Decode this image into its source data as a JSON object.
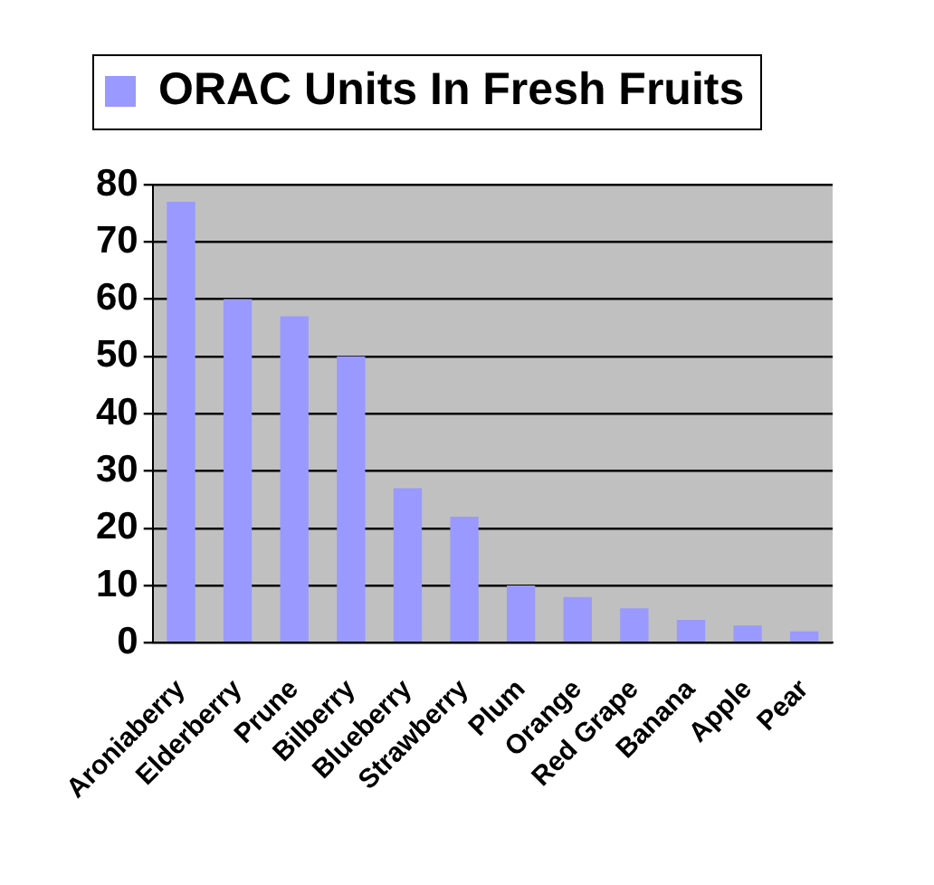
{
  "chart_data": {
    "type": "bar",
    "categories": [
      "Aroniaberry",
      "Elderberry",
      "Prune",
      "Bilberry",
      "Blueberry",
      "Strawberry",
      "Plum",
      "Orange",
      "Red Grape",
      "Banana",
      "Apple",
      "Pear"
    ],
    "series": [
      {
        "name": "ORAC Units In Fresh Fruits",
        "color": "#9999ff",
        "values": [
          77,
          60,
          57,
          50,
          27,
          22,
          10,
          8,
          6,
          4,
          3,
          2
        ]
      }
    ],
    "ylim": [
      0,
      80
    ],
    "yticks": [
      0,
      10,
      20,
      30,
      40,
      50,
      60,
      70,
      80
    ],
    "grid": "y",
    "legend": "top left"
  }
}
